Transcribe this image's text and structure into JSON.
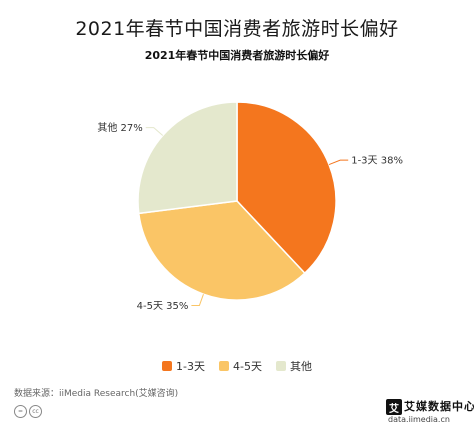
{
  "page_title": "2021年春节中国消费者旅游时长偏好",
  "source": "数据来源：iiMedia Research(艾媒咨询)",
  "license_icons": [
    "cc-equals-icon",
    "cc-icon"
  ],
  "brand": {
    "name": "艾媒数据中心",
    "logo_char": "艾",
    "url": "data.iimedia.cn"
  },
  "chart_data": {
    "type": "pie",
    "title": "2021年春节中国消费者旅游时长偏好",
    "categories": [
      "1-3天",
      "4-5天",
      "其他"
    ],
    "values": [
      38,
      35,
      27
    ],
    "unit": "%",
    "colors": [
      "#F4761E",
      "#FAC566",
      "#E4E8CD"
    ],
    "data_labels": [
      "1-3天 38%",
      "4-5天 35%",
      "其他 27%"
    ],
    "legend": {
      "position": "bottom",
      "entries": [
        "1-3天",
        "4-5天",
        "其他"
      ]
    }
  }
}
